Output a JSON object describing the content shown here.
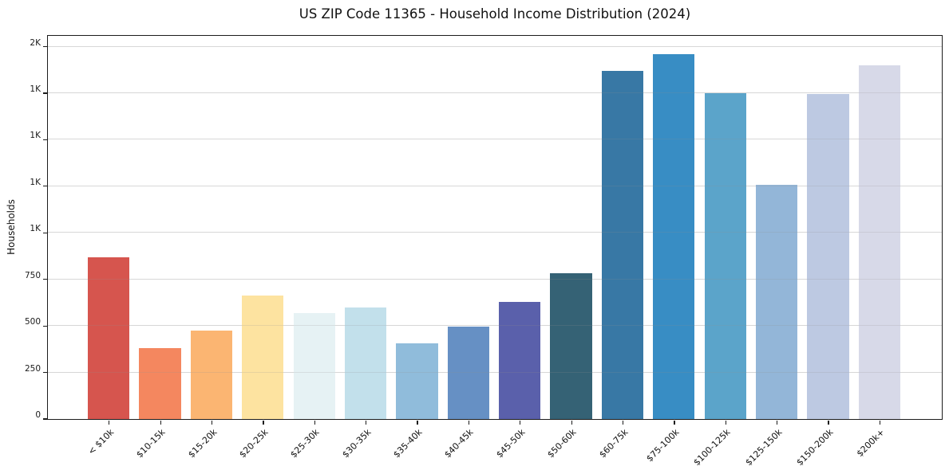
{
  "title": "US ZIP Code 11365 - Household Income Distribution (2024)",
  "chart_data": {
    "type": "bar",
    "title": "US ZIP Code 11365 - Household Income Distribution (2024)",
    "xlabel": "",
    "ylabel": "Households",
    "categories": [
      "< $10k",
      "$10-15k",
      "$15-20k",
      "$20-25k",
      "$25-30k",
      "$30-35k",
      "$35-40k",
      "$40-45k",
      "$45-50k",
      "$50-60k",
      "$60-75k",
      "$75-100k",
      "$100-125k",
      "$125-150k",
      "$150-200k",
      "$200k+"
    ],
    "values": [
      870,
      380,
      475,
      665,
      570,
      600,
      405,
      495,
      630,
      785,
      1870,
      1960,
      1750,
      1260,
      1745,
      1900
    ],
    "bar_colors": [
      "#d6554e",
      "#f4875f",
      "#fbb572",
      "#fde3a0",
      "#e6f2f4",
      "#c2e0eb",
      "#90bcdb",
      "#6690c4",
      "#5a60ab",
      "#356275",
      "#3878a5",
      "#388dc4",
      "#5ba4ca",
      "#93b6d8",
      "#bdc9e2",
      "#d7d9e8"
    ],
    "ylim": [
      0,
      2058
    ],
    "yticks": [
      {
        "value": 0,
        "label": "0"
      },
      {
        "value": 250,
        "label": "250"
      },
      {
        "value": 500,
        "label": "500"
      },
      {
        "value": 750,
        "label": "750"
      },
      {
        "value": 1000,
        "label": "1K"
      },
      {
        "value": 1250,
        "label": "1K"
      },
      {
        "value": 1500,
        "label": "1K"
      },
      {
        "value": 1750,
        "label": "1K"
      },
      {
        "value": 2000,
        "label": "2K"
      }
    ],
    "grid": "horizontal-major",
    "legend": "none"
  },
  "colors": {
    "background": "#ffffff",
    "grid": "#e9e9e9",
    "spine": "#1c1c1c",
    "text": "#111111"
  }
}
